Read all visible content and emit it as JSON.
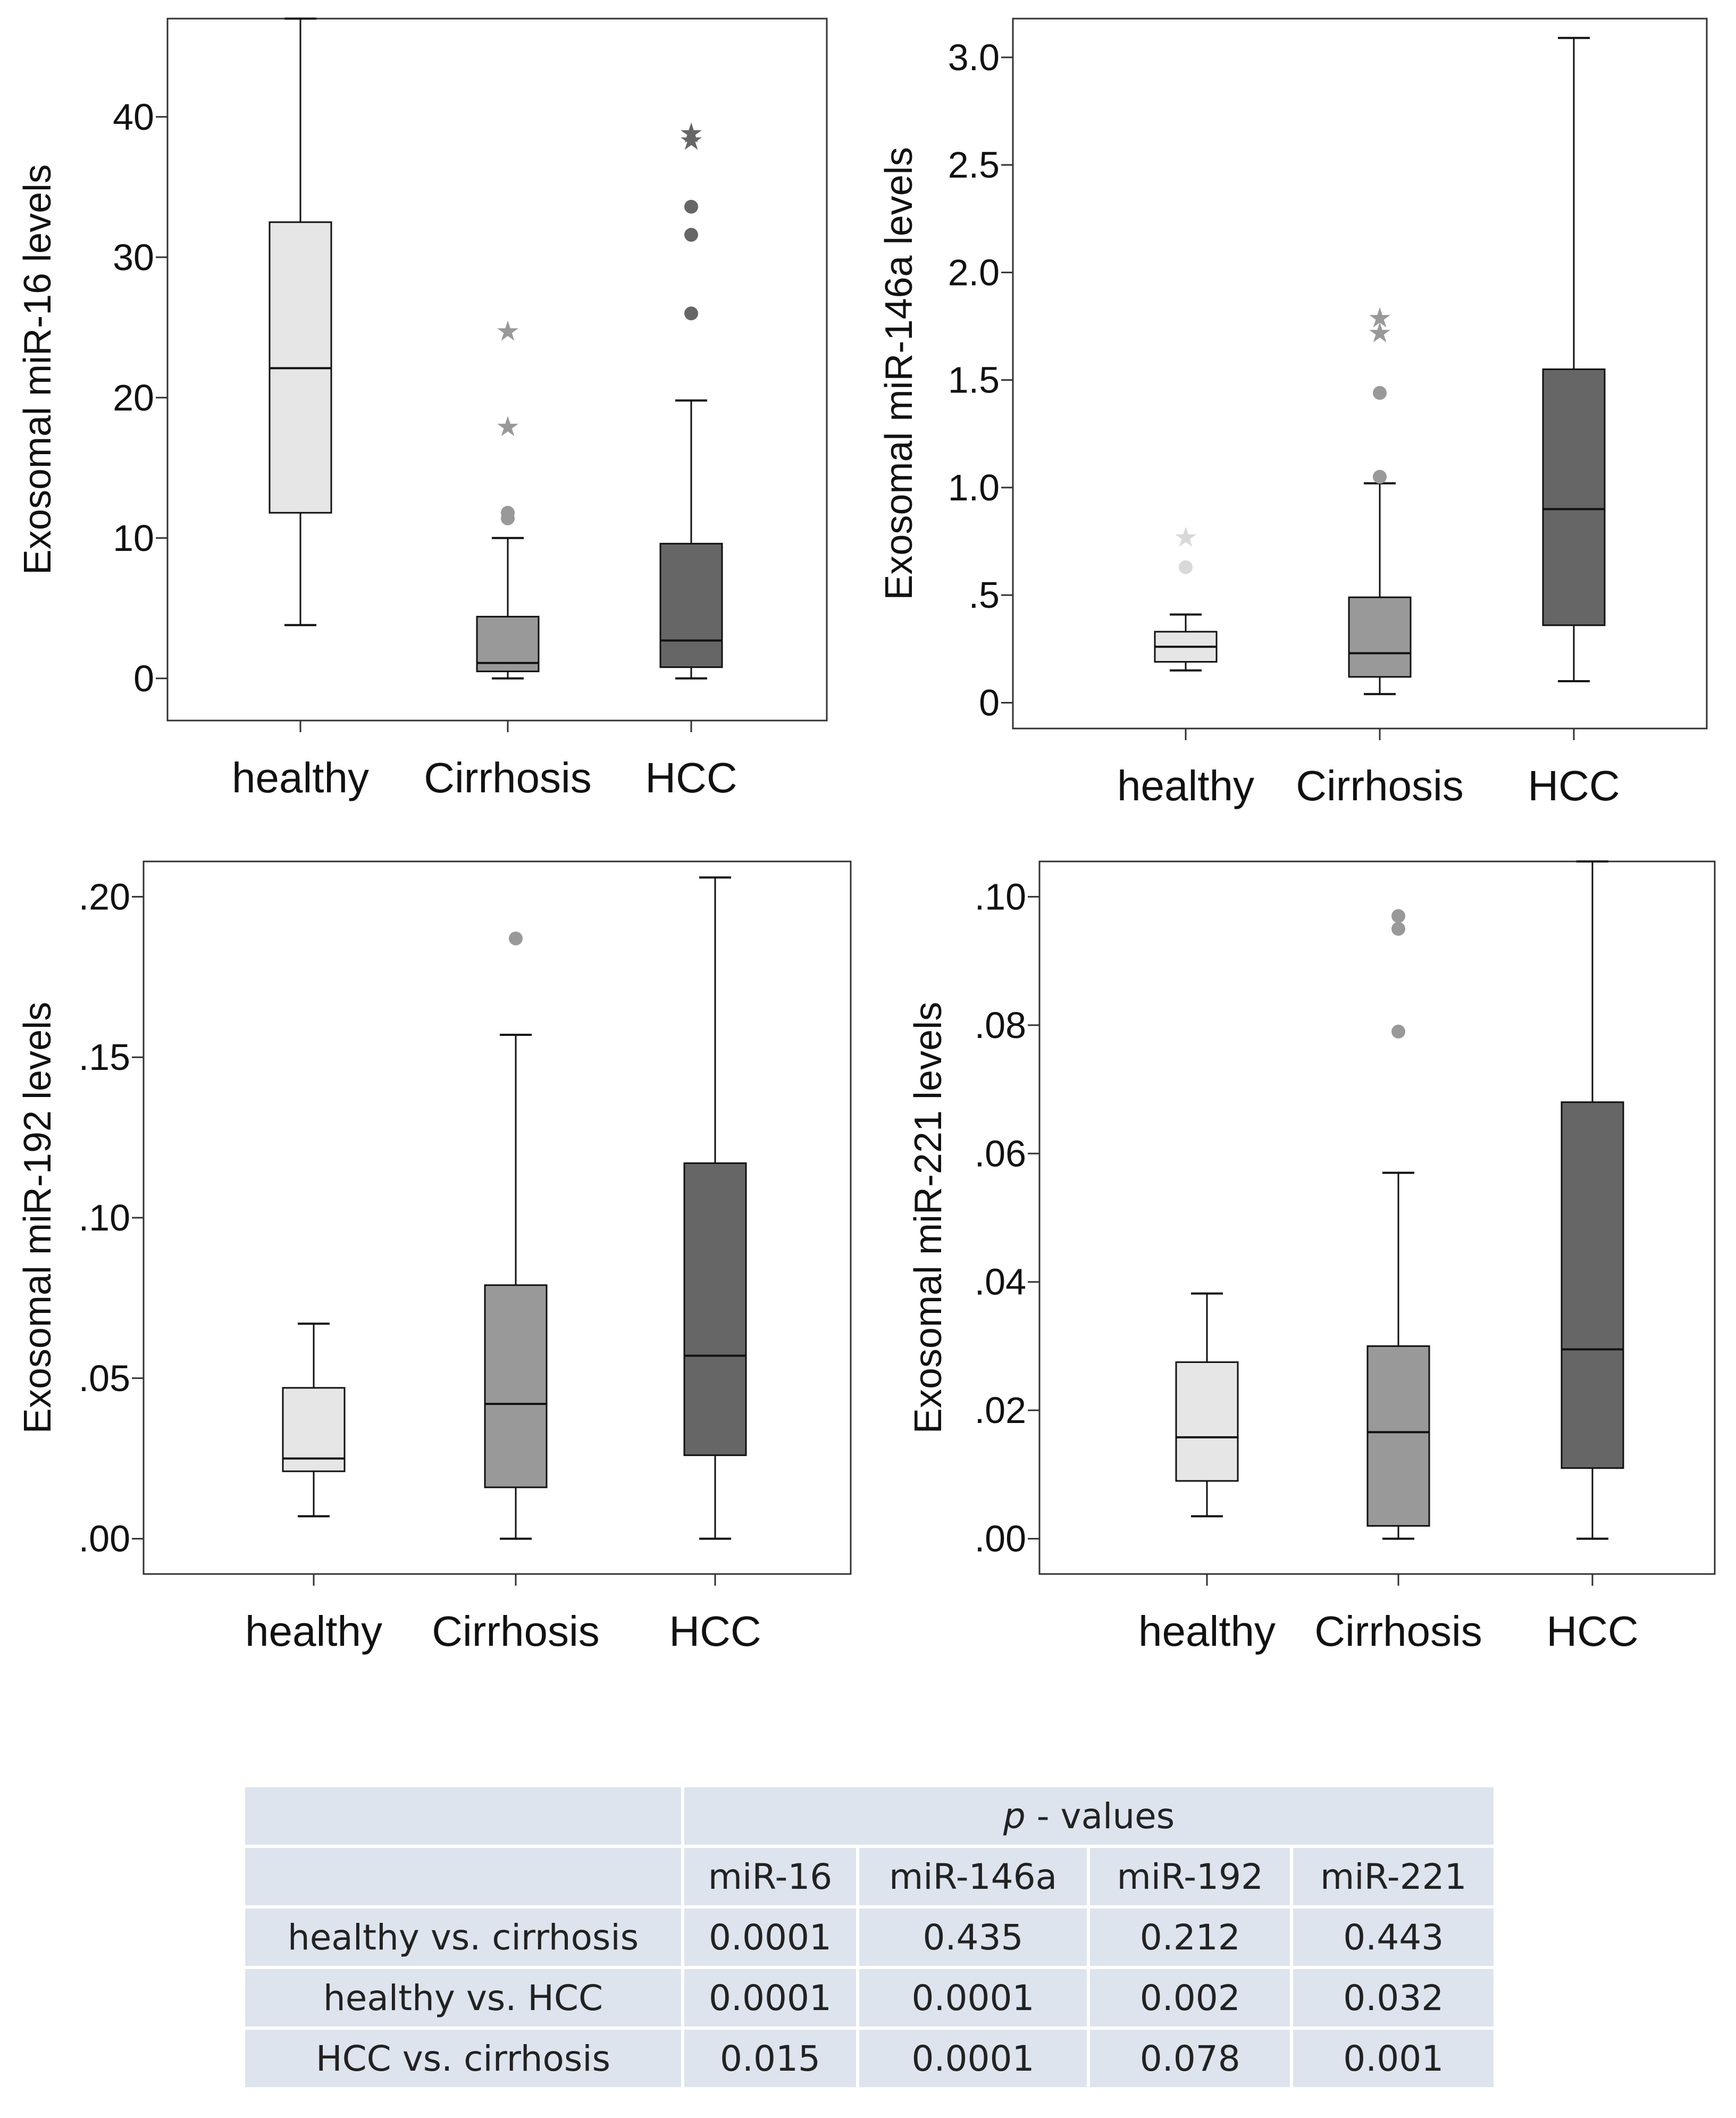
{
  "charts": [
    {
      "type": "box",
      "ylabel": "Exosomal miR-16 levels",
      "categories": [
        "healthy",
        "Cirrhosis",
        "HCC"
      ],
      "ylim": [
        -3,
        47
      ],
      "yticks": [
        0,
        10,
        20,
        30,
        40
      ],
      "ytick_labels": [
        "0",
        "10",
        "20",
        "30",
        "40"
      ],
      "series": [
        {
          "whisker_low": 3.8,
          "q1": 11.8,
          "median": 22.1,
          "q3": 32.5,
          "whisker_high": 47.0,
          "outliers": [],
          "extremes": []
        },
        {
          "whisker_low": 0.0,
          "q1": 0.5,
          "median": 1.1,
          "q3": 4.4,
          "whisker_high": 10.0,
          "outliers": [
            11.4,
            11.8
          ],
          "extremes": [
            18.1,
            24.9
          ]
        },
        {
          "whisker_low": 0.0,
          "q1": 0.8,
          "median": 2.7,
          "q3": 9.6,
          "whisker_high": 19.8,
          "outliers": [
            26.0,
            31.6,
            33.6
          ],
          "extremes": [
            38.5,
            39.0
          ]
        }
      ]
    },
    {
      "type": "box",
      "ylabel": "Exosomal miR-146a levels",
      "categories": [
        "healthy",
        "Cirrhosis",
        "HCC"
      ],
      "ylim": [
        -0.12,
        3.18
      ],
      "yticks": [
        0,
        0.5,
        1.0,
        1.5,
        2.0,
        2.5,
        3.0
      ],
      "ytick_labels": [
        "0",
        ".5",
        "1.0",
        "1.5",
        "2.0",
        "2.5",
        "3.0"
      ],
      "series": [
        {
          "whisker_low": 0.15,
          "q1": 0.19,
          "median": 0.26,
          "q3": 0.33,
          "whisker_high": 0.41,
          "outliers": [
            0.63
          ],
          "extremes": [
            0.78
          ]
        },
        {
          "whisker_low": 0.04,
          "q1": 0.12,
          "median": 0.23,
          "q3": 0.49,
          "whisker_high": 1.02,
          "outliers": [
            1.05,
            1.44
          ],
          "extremes": [
            1.73,
            1.8
          ]
        },
        {
          "whisker_low": 0.1,
          "q1": 0.36,
          "median": 0.9,
          "q3": 1.55,
          "whisker_high": 3.09,
          "outliers": [],
          "extremes": []
        }
      ]
    },
    {
      "type": "box",
      "ylabel": "Exosomal miR-192 levels",
      "categories": [
        "healthy",
        "Cirrhosis",
        "HCC"
      ],
      "ylim": [
        -0.011,
        0.211
      ],
      "yticks": [
        0,
        0.05,
        0.1,
        0.15,
        0.2
      ],
      "ytick_labels": [
        ".00",
        ".05",
        ".10",
        ".15",
        ".20"
      ],
      "series": [
        {
          "whisker_low": 0.007,
          "q1": 0.021,
          "median": 0.025,
          "q3": 0.047,
          "whisker_high": 0.067,
          "outliers": [],
          "extremes": []
        },
        {
          "whisker_low": 0.0,
          "q1": 0.016,
          "median": 0.042,
          "q3": 0.079,
          "whisker_high": 0.157,
          "outliers": [
            0.187
          ],
          "extremes": []
        },
        {
          "whisker_low": 0.0,
          "q1": 0.026,
          "median": 0.057,
          "q3": 0.117,
          "whisker_high": 0.206,
          "outliers": [],
          "extremes": []
        }
      ]
    },
    {
      "type": "box",
      "ylabel": "Exosomal miR-221 levels",
      "categories": [
        "healthy",
        "Cirrhosis",
        "HCC"
      ],
      "ylim": [
        -0.0055,
        0.1055
      ],
      "yticks": [
        0,
        0.02,
        0.04,
        0.06,
        0.08,
        0.1
      ],
      "ytick_labels": [
        ".00",
        ".02",
        ".04",
        ".06",
        ".08",
        ".10"
      ],
      "series": [
        {
          "whisker_low": 0.0035,
          "q1": 0.009,
          "median": 0.0158,
          "q3": 0.0275,
          "whisker_high": 0.0382,
          "outliers": [],
          "extremes": []
        },
        {
          "whisker_low": 0.0,
          "q1": 0.002,
          "median": 0.0166,
          "q3": 0.03,
          "whisker_high": 0.057,
          "outliers": [
            0.079,
            0.095,
            0.097
          ],
          "extremes": []
        },
        {
          "whisker_low": 0.0,
          "q1": 0.011,
          "median": 0.0295,
          "q3": 0.068,
          "whisker_high": 0.1055,
          "outliers": [],
          "extremes": []
        }
      ]
    }
  ],
  "colors": {
    "healthy": "#e6e6e6",
    "Cirrhosis": "#999999",
    "HCC": "#666666"
  },
  "table": {
    "header_p": "p",
    "header_rest": " - values",
    "columns": [
      "miR-16",
      "miR-146a",
      "miR-192",
      "miR-221"
    ],
    "rows": [
      {
        "label": "healthy vs. cirrhosis",
        "values": [
          "0.0001",
          "0.435",
          "0.212",
          "0.443"
        ]
      },
      {
        "label": "healthy vs. HCC",
        "values": [
          "0.0001",
          "0.0001",
          "0.002",
          "0.032"
        ]
      },
      {
        "label": "HCC vs. cirrhosis",
        "values": [
          "0.015",
          "0.0001",
          "0.078",
          "0.001"
        ]
      }
    ]
  }
}
